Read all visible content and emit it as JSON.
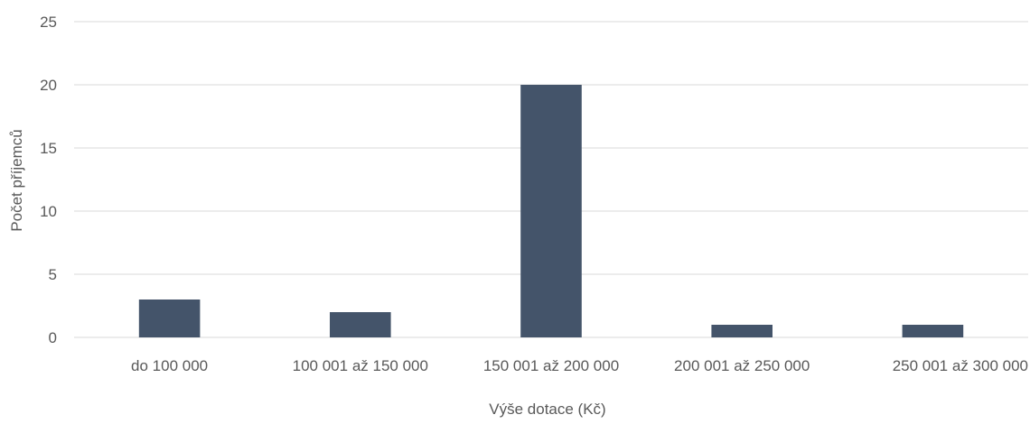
{
  "chart_data": {
    "type": "bar",
    "title": "",
    "xlabel": "Výše dotace (Kč)",
    "ylabel": "Počet příjemců",
    "categories": [
      "do 100 000",
      "100 001 až 150 000",
      "150 001 až 200 000",
      "200 001 až 250 000",
      "250 001 až 300 000"
    ],
    "series": [
      {
        "values": [
          3,
          2,
          20,
          1,
          1
        ]
      }
    ],
    "ylim": [
      0,
      25
    ],
    "yticks": [
      "0",
      "5",
      "10",
      "15",
      "20",
      "25"
    ],
    "grid": true,
    "legend": "none",
    "colors": {
      "bar": "#44546a",
      "grid": "#d9d9d9",
      "text": "#595959"
    }
  }
}
